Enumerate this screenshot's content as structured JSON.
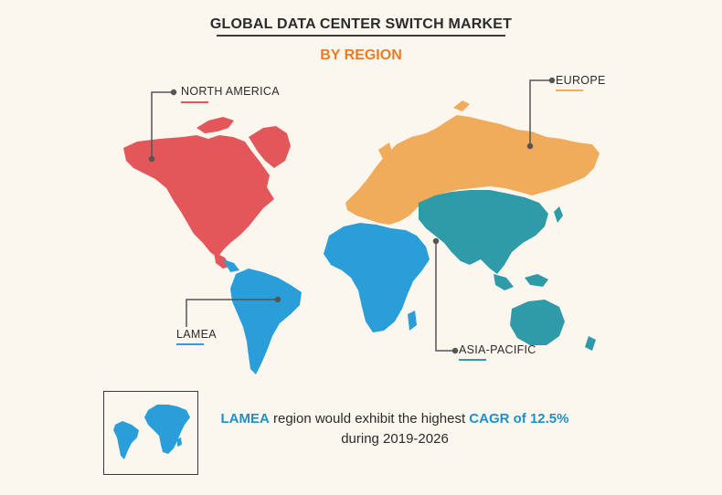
{
  "header": {
    "title": "GLOBAL DATA CENTER SWITCH MARKET",
    "subtitle": "BY REGION"
  },
  "regions": {
    "north_america": {
      "label": "NORTH AMERICA",
      "color": "#e3565a"
    },
    "europe": {
      "label": "EUROPE",
      "color": "#f0ac5a"
    },
    "lamea": {
      "label": "LAMEA",
      "color": "#2a9ed8"
    },
    "asia_pacific": {
      "label": "ASIA-PACIFIC",
      "color": "#2f9aa8"
    }
  },
  "callout": {
    "part1": "LAMEA",
    "part2": " region would exhibit the highest ",
    "part3": "CAGR of 12.5%",
    "part4": "during 2019-2026"
  },
  "colors": {
    "background": "#fbf7ee",
    "title": "#2b2b2b",
    "subtitle": "#ef7a22",
    "highlight": "#1e90c8"
  }
}
